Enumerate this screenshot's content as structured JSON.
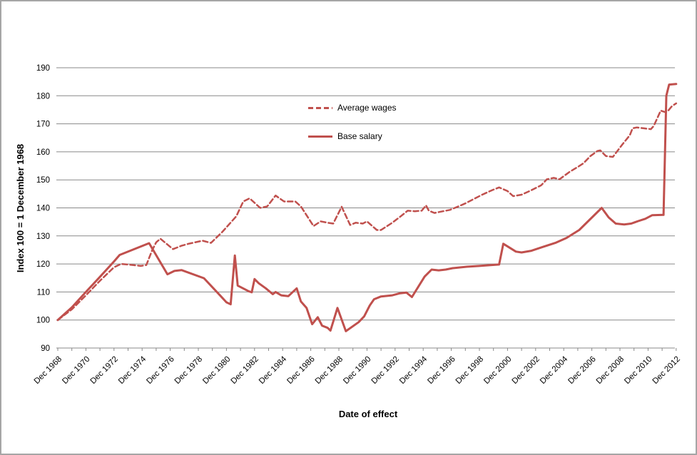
{
  "chart_data": {
    "type": "line",
    "title": "",
    "xlabel": "Date of effect",
    "ylabel": "Index 100 = 1 December 1968",
    "ylim": [
      90,
      190
    ],
    "y_tick_step": 10,
    "x_range_years_after_dec_1968": [
      0,
      44
    ],
    "x_minor_tick_every_years": 1,
    "grid": "horizontal",
    "legend_position": "inside-upper-middle",
    "colors": {
      "series": "#C0504D",
      "gridline": "#898989",
      "text": "#000000"
    },
    "x_tick_labels": [
      "Dec 1968",
      "Dec 1970",
      "Dec 1972",
      "Dec 1974",
      "Dec 1976",
      "Dec 1978",
      "Dec 1980",
      "Dec 1982",
      "Dec 1984",
      "Dec 1986",
      "Dec 1988",
      "Dec 1990",
      "Dec 1992",
      "Dec 1994",
      "Dec 1996",
      "Dec 1998",
      "Dec 2000",
      "Dec 2002",
      "Dec 2004",
      "Dec 2006",
      "Dec 2008",
      "Dec 2010",
      "Dec 2012"
    ],
    "x_tick_positions": [
      0,
      2,
      4,
      6,
      8,
      10,
      12,
      14,
      16,
      18,
      20,
      22,
      24,
      26,
      28,
      30,
      32,
      34,
      36,
      38,
      40,
      42,
      44
    ],
    "series": [
      {
        "name": "Average wages",
        "dash": true,
        "points": [
          [
            0,
            100
          ],
          [
            1,
            103.8
          ],
          [
            2,
            108.8
          ],
          [
            3,
            114.0
          ],
          [
            4,
            118.8
          ],
          [
            4.5,
            120.0
          ],
          [
            5.4,
            119.6
          ],
          [
            5.9,
            119.3
          ],
          [
            6.3,
            119.6
          ],
          [
            6.7,
            124.7
          ],
          [
            7.0,
            127.7
          ],
          [
            7.3,
            129.0
          ],
          [
            8.2,
            125.3
          ],
          [
            8.8,
            126.5
          ],
          [
            9.3,
            127.2
          ],
          [
            10.3,
            128.3
          ],
          [
            10.9,
            127.5
          ],
          [
            11.7,
            131.4
          ],
          [
            12.7,
            137.0
          ],
          [
            13.2,
            142.3
          ],
          [
            13.65,
            143.4
          ],
          [
            14.4,
            140.0
          ],
          [
            14.9,
            140.5
          ],
          [
            15.5,
            144.4
          ],
          [
            16.1,
            142.3
          ],
          [
            16.9,
            142.3
          ],
          [
            17.3,
            140.5
          ],
          [
            18.2,
            133.5
          ],
          [
            18.7,
            135.2
          ],
          [
            19.2,
            134.7
          ],
          [
            19.6,
            134.4
          ],
          [
            20.2,
            140.4
          ],
          [
            20.8,
            133.9
          ],
          [
            21.2,
            134.7
          ],
          [
            21.7,
            134.4
          ],
          [
            22.0,
            135.2
          ],
          [
            22.7,
            132.1
          ],
          [
            23.0,
            132.1
          ],
          [
            23.8,
            134.7
          ],
          [
            24.4,
            137.0
          ],
          [
            24.9,
            139.0
          ],
          [
            25.4,
            138.8
          ],
          [
            25.9,
            139.0
          ],
          [
            26.2,
            140.9
          ],
          [
            26.4,
            139.0
          ],
          [
            26.8,
            138.2
          ],
          [
            27.9,
            139.3
          ],
          [
            28.4,
            140.3
          ],
          [
            29.0,
            141.6
          ],
          [
            29.5,
            142.9
          ],
          [
            30.2,
            144.7
          ],
          [
            30.9,
            146.3
          ],
          [
            31.4,
            147.3
          ],
          [
            32.0,
            146.0
          ],
          [
            32.4,
            144.2
          ],
          [
            33.0,
            144.7
          ],
          [
            33.7,
            146.3
          ],
          [
            34.4,
            148.1
          ],
          [
            34.8,
            150.2
          ],
          [
            35.3,
            150.7
          ],
          [
            35.7,
            150.2
          ],
          [
            36.4,
            152.8
          ],
          [
            37.0,
            154.6
          ],
          [
            37.4,
            155.9
          ],
          [
            37.9,
            158.5
          ],
          [
            38.4,
            160.3
          ],
          [
            38.6,
            160.5
          ],
          [
            39.0,
            158.5
          ],
          [
            39.5,
            158.2
          ],
          [
            40.2,
            162.8
          ],
          [
            40.7,
            165.9
          ],
          [
            40.9,
            168.4
          ],
          [
            41.2,
            168.7
          ],
          [
            41.7,
            168.4
          ],
          [
            42.2,
            168.1
          ],
          [
            42.4,
            169.2
          ],
          [
            42.7,
            172.5
          ],
          [
            42.9,
            174.7
          ],
          [
            43.2,
            174.2
          ],
          [
            43.4,
            174.5
          ],
          [
            43.7,
            176.3
          ],
          [
            44,
            177.3
          ]
        ]
      },
      {
        "name": "Base salary",
        "dash": false,
        "points": [
          [
            0,
            100
          ],
          [
            1,
            104.5
          ],
          [
            2,
            110.0
          ],
          [
            3,
            115.4
          ],
          [
            4,
            120.9
          ],
          [
            4.4,
            123.2
          ],
          [
            6.5,
            127.4
          ],
          [
            7.8,
            116.3
          ],
          [
            8.3,
            117.5
          ],
          [
            8.8,
            117.8
          ],
          [
            10.4,
            114.9
          ],
          [
            11.6,
            108.5
          ],
          [
            12.0,
            106.3
          ],
          [
            12.3,
            105.6
          ],
          [
            12.6,
            123.0
          ],
          [
            12.8,
            112.3
          ],
          [
            13.6,
            110.2
          ],
          [
            13.8,
            109.9
          ],
          [
            14.0,
            114.6
          ],
          [
            14.3,
            113.1
          ],
          [
            14.8,
            111.3
          ],
          [
            15.3,
            109.2
          ],
          [
            15.5,
            110.0
          ],
          [
            15.9,
            108.8
          ],
          [
            16.4,
            108.5
          ],
          [
            17.0,
            111.3
          ],
          [
            17.3,
            106.6
          ],
          [
            17.7,
            104.3
          ],
          [
            18.1,
            98.5
          ],
          [
            18.5,
            101.0
          ],
          [
            18.8,
            98.0
          ],
          [
            19.2,
            97.2
          ],
          [
            19.4,
            96.2
          ],
          [
            19.9,
            104.3
          ],
          [
            20.5,
            96.0
          ],
          [
            21.4,
            99.2
          ],
          [
            21.8,
            101.3
          ],
          [
            22.2,
            105.2
          ],
          [
            22.5,
            107.4
          ],
          [
            23.0,
            108.4
          ],
          [
            23.8,
            108.8
          ],
          [
            24.3,
            109.5
          ],
          [
            24.8,
            109.8
          ],
          [
            25.2,
            108.2
          ],
          [
            26.1,
            115.5
          ],
          [
            26.6,
            118.0
          ],
          [
            27.1,
            117.7
          ],
          [
            27.6,
            118.0
          ],
          [
            28.1,
            118.5
          ],
          [
            29.1,
            119.0
          ],
          [
            30.0,
            119.3
          ],
          [
            31.4,
            119.8
          ],
          [
            31.7,
            127.2
          ],
          [
            32.6,
            124.4
          ],
          [
            33.0,
            124.1
          ],
          [
            33.7,
            124.7
          ],
          [
            34.6,
            126.2
          ],
          [
            35.4,
            127.5
          ],
          [
            36.2,
            129.3
          ],
          [
            37.1,
            132.1
          ],
          [
            38.7,
            140.0
          ],
          [
            39.2,
            136.6
          ],
          [
            39.7,
            134.4
          ],
          [
            40.3,
            134.1
          ],
          [
            40.8,
            134.4
          ],
          [
            41.3,
            135.3
          ],
          [
            41.8,
            136.1
          ],
          [
            42.3,
            137.4
          ],
          [
            43.1,
            137.5
          ],
          [
            43.3,
            180.0
          ],
          [
            43.5,
            184.0
          ],
          [
            44,
            184.2
          ]
        ]
      }
    ]
  },
  "legend": {
    "entries": [
      {
        "label": "Average wages"
      },
      {
        "label": "Base salary"
      }
    ]
  }
}
